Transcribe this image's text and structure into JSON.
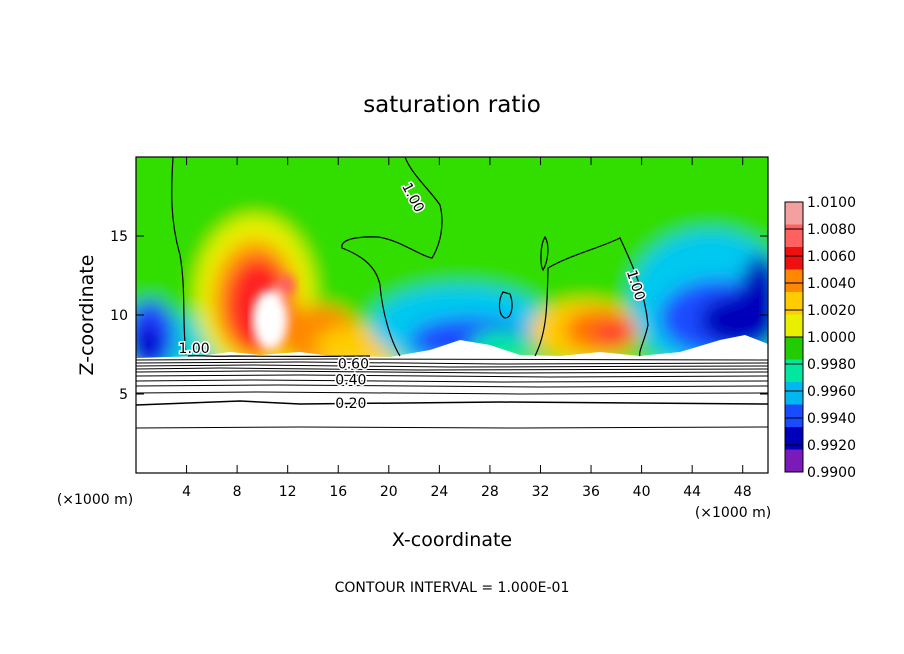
{
  "chart_data": {
    "type": "heatmap",
    "title": "saturation ratio",
    "xlabel": "X-coordinate",
    "ylabel": "Z-coordinate",
    "x_unit_label": "(×1000 m)",
    "footer": "CONTOUR INTERVAL = 1.000E-01",
    "xlim": [
      0,
      50
    ],
    "ylim": [
      0,
      20
    ],
    "x_ticks": [
      4,
      8,
      12,
      16,
      20,
      24,
      28,
      32,
      36,
      40,
      44,
      48
    ],
    "y_ticks": [
      5,
      10,
      15
    ],
    "colorbar": {
      "levels": [
        "1.0100",
        "1.0080",
        "1.0060",
        "1.0040",
        "1.0020",
        "1.0000",
        "0.9980",
        "0.9960",
        "0.9940",
        "0.9920",
        "0.9900"
      ],
      "colors": [
        "#f4a0a0",
        "#ff6060",
        "#ee1010",
        "#ff8800",
        "#ffcc00",
        "#e8f000",
        "#22cc00",
        "#00e8a0",
        "#00b8f0",
        "#1a4cff",
        "#0000bb",
        "#7a1ab8"
      ]
    },
    "contour_labels": [
      {
        "text": "1.00",
        "x": 21.6,
        "y": 17.3,
        "angle": 62
      },
      {
        "text": "1.00",
        "x": 39.2,
        "y": 11.8,
        "angle": 72
      },
      {
        "text": "1.00",
        "x": 4.6,
        "y": 7.6,
        "angle": 0
      },
      {
        "text": "0.60",
        "x": 17.2,
        "y": 6.6,
        "angle": 0
      },
      {
        "text": "0.40",
        "x": 17.0,
        "y": 5.6,
        "angle": 0
      },
      {
        "text": "0.20",
        "x": 17.0,
        "y": 4.1,
        "angle": 0
      }
    ],
    "grid": false,
    "legend": "right"
  }
}
